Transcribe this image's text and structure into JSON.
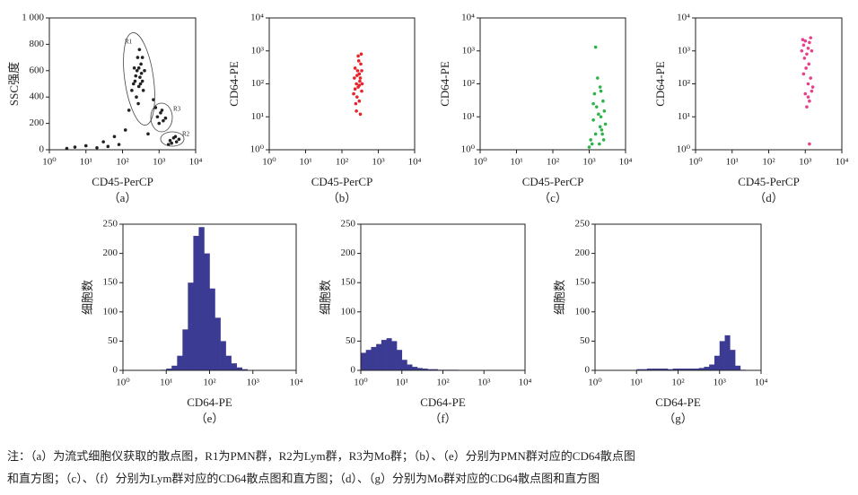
{
  "chart_data": [
    {
      "type": "scatter",
      "xlabel": "CD45-PerCP",
      "ylabel": "SSC强度",
      "panel": "（a）",
      "xscale": "log",
      "yscale": "linear",
      "xlim": [
        1,
        10000
      ],
      "ylim": [
        0,
        1000
      ],
      "xticks": [
        {
          "value": 1,
          "label": "10⁰"
        },
        {
          "value": 10,
          "label": "10¹"
        },
        {
          "value": 100,
          "label": "10²"
        },
        {
          "value": 1000,
          "label": "10³"
        },
        {
          "value": 10000,
          "label": "10⁴"
        }
      ],
      "yticks": [
        0,
        200,
        400,
        600,
        800,
        {
          "value": 1000,
          "label": "1 000"
        }
      ],
      "series": [
        {
          "color": "#222222",
          "x": [
            180,
            220,
            250,
            280,
            300,
            320,
            350,
            260,
            240,
            330,
            290,
            210,
            370,
            400,
            270,
            310,
            230,
            350,
            200,
            280,
            900,
            1100,
            1300,
            1000,
            1200,
            1500,
            800,
            2000,
            2500,
            3000,
            2200,
            2800,
            3500,
            1800,
            5,
            10,
            20,
            40,
            80,
            60,
            120,
            30,
            150,
            500,
            700,
            3
          ],
          "y": [
            450,
            520,
            600,
            480,
            550,
            650,
            520,
            700,
            400,
            580,
            760,
            620,
            450,
            600,
            350,
            500,
            560,
            700,
            500,
            620,
            250,
            280,
            220,
            200,
            300,
            240,
            320,
            70,
            90,
            60,
            50,
            100,
            80,
            40,
            20,
            30,
            15,
            25,
            40,
            100,
            150,
            60,
            300,
            120,
            380,
            10
          ]
        }
      ],
      "annotations": [
        "R1",
        "R3",
        "R2"
      ]
    },
    {
      "type": "scatter",
      "xlabel": "CD45-PerCP",
      "ylabel": "CD64-PE",
      "panel": "（b）",
      "xscale": "log",
      "yscale": "log",
      "xlim": [
        1,
        10000
      ],
      "ylim": [
        1,
        10000
      ],
      "xticks": [
        {
          "value": 1,
          "label": "10⁰"
        },
        {
          "value": 10,
          "label": "10¹"
        },
        {
          "value": 100,
          "label": "10²"
        },
        {
          "value": 1000,
          "label": "10³"
        },
        {
          "value": 10000,
          "label": "10⁴"
        }
      ],
      "yticks": [
        {
          "value": 1,
          "label": "10⁰"
        },
        {
          "value": 10,
          "label": "10¹"
        },
        {
          "value": 100,
          "label": "10²"
        },
        {
          "value": 1000,
          "label": "10³"
        },
        {
          "value": 10000,
          "label": "10⁴"
        }
      ],
      "series": [
        {
          "color": "#e8232a",
          "x": [
            210,
            250,
            300,
            280,
            320,
            230,
            350,
            260,
            290,
            310,
            240,
            330,
            270,
            220,
            360,
            300,
            250,
            340,
            280,
            320,
            260,
            300,
            230,
            350
          ],
          "y": [
            50,
            100,
            200,
            80,
            150,
            300,
            60,
            40,
            500,
            120,
            25,
            400,
            250,
            150,
            100,
            30,
            15,
            800,
            700,
            12,
            180,
            90,
            70,
            250
          ]
        }
      ]
    },
    {
      "type": "scatter",
      "xlabel": "CD45-PerCP",
      "ylabel": "CD64-PE",
      "panel": "（c）",
      "xscale": "log",
      "yscale": "log",
      "xlim": [
        1,
        10000
      ],
      "ylim": [
        1,
        10000
      ],
      "xticks": [
        {
          "value": 1,
          "label": "10⁰"
        },
        {
          "value": 10,
          "label": "10¹"
        },
        {
          "value": 100,
          "label": "10²"
        },
        {
          "value": 1000,
          "label": "10³"
        },
        {
          "value": 10000,
          "label": "10⁴"
        }
      ],
      "yticks": [
        {
          "value": 1,
          "label": "10⁰"
        },
        {
          "value": 10,
          "label": "10¹"
        },
        {
          "value": 100,
          "label": "10²"
        },
        {
          "value": 1000,
          "label": "10³"
        },
        {
          "value": 10000,
          "label": "10⁴"
        }
      ],
      "series": [
        {
          "color": "#2db34a",
          "x": [
            1100,
            1500,
            2000,
            2500,
            1300,
            1800,
            2200,
            2800,
            1200,
            1600,
            2100,
            2400,
            1400,
            2000,
            1700,
            1000,
            2600,
            1900,
            1500,
            2300,
            1300,
            2100
          ],
          "y": [
            2,
            3,
            5,
            2,
            8,
            12,
            4,
            6,
            1.5,
            20,
            10,
            30,
            50,
            80,
            150,
            1.2,
            15,
            1.5,
            1300,
            3,
            25,
            60
          ]
        }
      ]
    },
    {
      "type": "scatter",
      "xlabel": "CD45-PerCP",
      "ylabel": "CD64-PE",
      "panel": "（d）",
      "xscale": "log",
      "yscale": "log",
      "xlim": [
        1,
        10000
      ],
      "ylim": [
        1,
        10000
      ],
      "xticks": [
        {
          "value": 1,
          "label": "10⁰"
        },
        {
          "value": 10,
          "label": "10¹"
        },
        {
          "value": 100,
          "label": "10²"
        },
        {
          "value": 1000,
          "label": "10³"
        },
        {
          "value": 10000,
          "label": "10⁴"
        }
      ],
      "yticks": [
        {
          "value": 1,
          "label": "10⁰"
        },
        {
          "value": 10,
          "label": "10¹"
        },
        {
          "value": 100,
          "label": "10²"
        },
        {
          "value": 1000,
          "label": "10³"
        },
        {
          "value": 10000,
          "label": "10⁴"
        }
      ],
      "series": [
        {
          "color": "#e8408a",
          "x": [
            800,
            900,
            1000,
            1200,
            1400,
            1100,
            1300,
            950,
            1500,
            1050,
            1200,
            1000,
            1300,
            900,
            1400,
            1100,
            1500,
            850,
            1250,
            1600,
            1300,
            1200
          ],
          "y": [
            1000,
            1500,
            2000,
            1200,
            2500,
            800,
            1800,
            600,
            1000,
            300,
            100,
            50,
            30,
            200,
            150,
            20,
            60,
            2200,
            400,
            80,
            1.5,
            40
          ]
        }
      ]
    },
    {
      "type": "histogram",
      "xlabel": "CD64-PE",
      "ylabel": "细胞数",
      "panel": "（e）",
      "xscale": "log",
      "color": "#3b3b94",
      "xlim": [
        1,
        10000
      ],
      "ylim": [
        0,
        250
      ],
      "xticks": [
        {
          "value": 1,
          "label": "10⁰"
        },
        {
          "value": 10,
          "label": "10¹"
        },
        {
          "value": 100,
          "label": "10²"
        },
        {
          "value": 1000,
          "label": "10³"
        },
        {
          "value": 10000,
          "label": "10⁴"
        }
      ],
      "yticks": [
        0,
        50,
        100,
        150,
        200,
        250
      ],
      "bins": [
        1,
        1.33,
        1.78,
        2.37,
        3.16,
        4.22,
        5.62,
        7.5,
        10,
        13.3,
        17.8,
        23.7,
        31.6,
        42.2,
        56.2,
        75,
        100,
        133,
        178,
        237,
        316,
        422,
        562,
        750,
        1000,
        1334,
        1778,
        2371,
        3162,
        4217,
        5623,
        7499,
        10000
      ],
      "counts": [
        0,
        0,
        0,
        0,
        0,
        0,
        0,
        1,
        3,
        8,
        25,
        70,
        150,
        230,
        245,
        200,
        140,
        90,
        50,
        25,
        12,
        5,
        2,
        0,
        0,
        0,
        0,
        0,
        0,
        0,
        0,
        0
      ]
    },
    {
      "type": "histogram",
      "xlabel": "CD64-PE",
      "ylabel": "细胞数",
      "panel": "（f）",
      "xscale": "log",
      "color": "#3b3b94",
      "xlim": [
        1,
        10000
      ],
      "ylim": [
        0,
        250
      ],
      "xticks": [
        {
          "value": 1,
          "label": "10⁰"
        },
        {
          "value": 10,
          "label": "10¹"
        },
        {
          "value": 100,
          "label": "10²"
        },
        {
          "value": 1000,
          "label": "10³"
        },
        {
          "value": 10000,
          "label": "10⁴"
        }
      ],
      "yticks": [
        0,
        50,
        100,
        150,
        200,
        250
      ],
      "bins": [
        1,
        1.33,
        1.78,
        2.37,
        3.16,
        4.22,
        5.62,
        7.5,
        10,
        13.3,
        17.8,
        23.7,
        31.6,
        42.2,
        56.2,
        75,
        100,
        133,
        178,
        237,
        316,
        422,
        562,
        750,
        1000,
        1334,
        1778,
        2371,
        3162,
        4217,
        5623,
        7499,
        10000
      ],
      "counts": [
        30,
        35,
        40,
        45,
        52,
        55,
        50,
        35,
        18,
        10,
        6,
        4,
        3,
        2,
        2,
        1,
        1,
        1,
        1,
        0,
        0,
        0,
        0,
        0,
        0,
        0,
        0,
        0,
        0,
        0,
        0,
        0
      ]
    },
    {
      "type": "histogram",
      "xlabel": "CD64-PE",
      "ylabel": "细胞数",
      "panel": "（g）",
      "xscale": "log",
      "color": "#3b3b94",
      "xlim": [
        1,
        10000
      ],
      "ylim": [
        0,
        250
      ],
      "xticks": [
        {
          "value": 1,
          "label": "10⁰"
        },
        {
          "value": 10,
          "label": "10¹"
        },
        {
          "value": 100,
          "label": "10²"
        },
        {
          "value": 1000,
          "label": "10³"
        },
        {
          "value": 10000,
          "label": "10⁴"
        }
      ],
      "yticks": [
        0,
        50,
        100,
        150,
        200,
        250
      ],
      "bins": [
        1,
        1.33,
        1.78,
        2.37,
        3.16,
        4.22,
        5.62,
        7.5,
        10,
        13.3,
        17.8,
        23.7,
        31.6,
        42.2,
        56.2,
        75,
        100,
        133,
        178,
        237,
        316,
        422,
        562,
        750,
        1000,
        1334,
        1778,
        2371,
        3162,
        4217,
        5623,
        7499,
        10000
      ],
      "counts": [
        0,
        0,
        0,
        0,
        0,
        0,
        0,
        0,
        2,
        2,
        3,
        3,
        3,
        3,
        2,
        3,
        3,
        3,
        3,
        3,
        4,
        6,
        10,
        25,
        50,
        60,
        35,
        8,
        1,
        0,
        0,
        0
      ]
    }
  ],
  "caption": [
    "注：（a）为流式细胞仪获取的散点图，R1为PMN群，R2为Lym群，R3为Mo群；（b）、（e）分别为PMN群对应的CD64散点图",
    "和直方图；（c）、（f）分别为Lym群对应的CD64散点图和直方图；（d）、（g）分别为Mo群对应的CD64散点图和直方图"
  ]
}
